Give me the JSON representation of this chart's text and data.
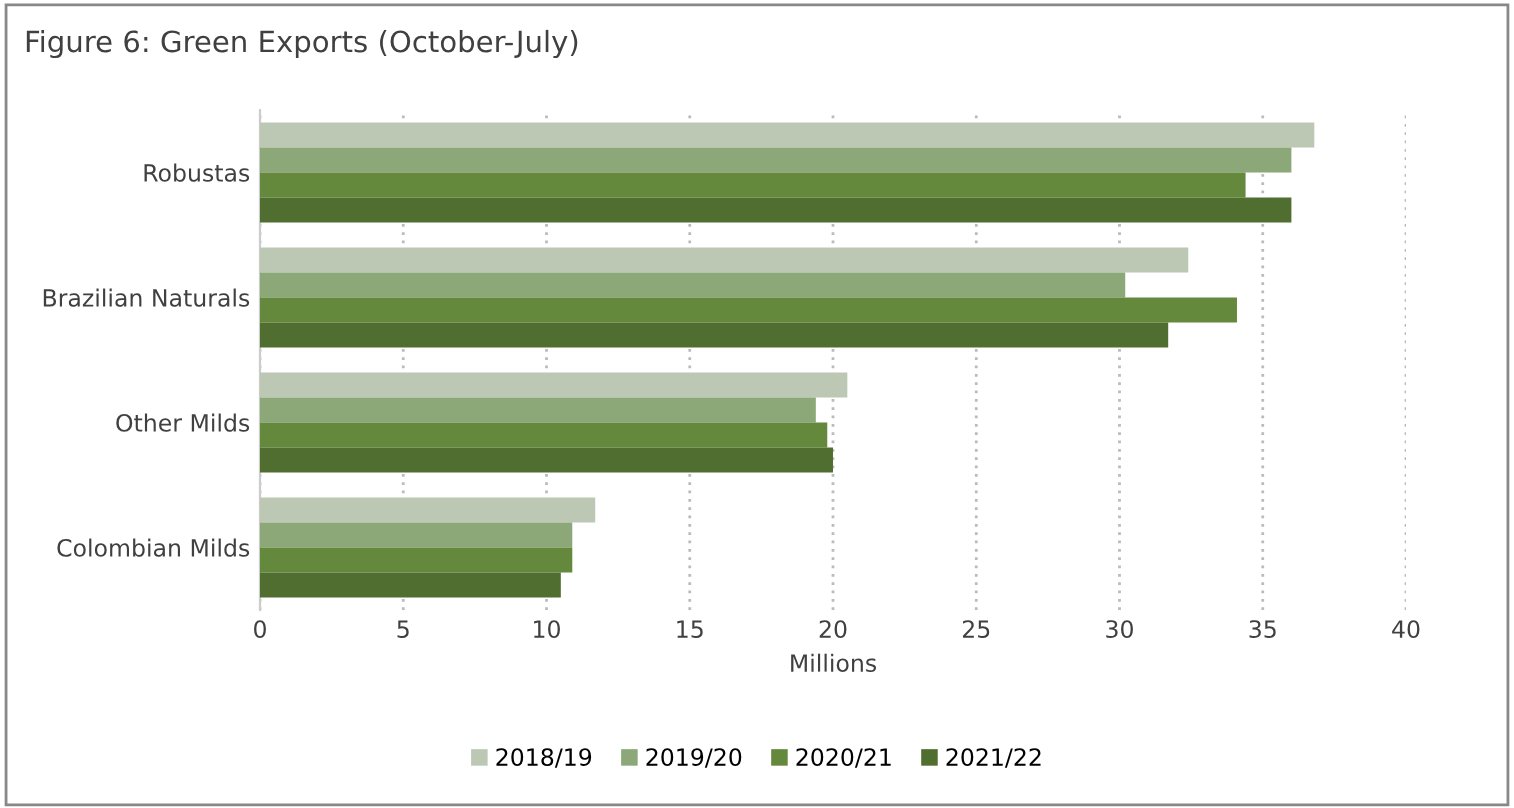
{
  "chart_data": {
    "type": "bar",
    "orientation": "horizontal",
    "title": "Figure 6: Green Exports (October-July)",
    "xlabel": "Millions",
    "categories": [
      "Robustas",
      "Brazilian Naturals",
      "Other Milds",
      "Colombian Milds"
    ],
    "series": [
      {
        "name": "2018/19",
        "color": "#bcc8b4",
        "values": [
          36.8,
          32.4,
          20.5,
          11.7
        ]
      },
      {
        "name": "2019/20",
        "color": "#8ca878",
        "values": [
          36.0,
          30.2,
          19.4,
          10.9
        ]
      },
      {
        "name": "2020/21",
        "color": "#64883c",
        "values": [
          34.4,
          34.1,
          19.8,
          10.9
        ]
      },
      {
        "name": "2021/22",
        "color": "#506e30",
        "values": [
          36.0,
          31.7,
          20.0,
          10.5
        ]
      }
    ],
    "xlim": [
      0,
      40
    ],
    "xticks": [
      0,
      5,
      10,
      15,
      20,
      25,
      30,
      35,
      40
    ],
    "grid": "x",
    "legend": "bottom"
  }
}
